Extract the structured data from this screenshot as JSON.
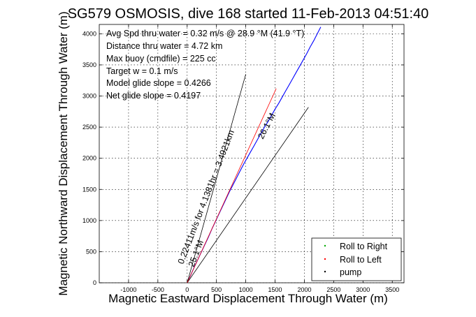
{
  "chart_data": {
    "type": "line",
    "title": "SG579 OSMOSIS, dive 168 started 11-Feb-2013 04:51:40",
    "xlabel": "Magnetic Eastward Displacement Through Water (m)",
    "ylabel": "Magnetic Northward Displacement Through Water (m)",
    "xlim": [
      -1500,
      3700
    ],
    "ylim": [
      0,
      4150
    ],
    "xticks": [
      -1000,
      -500,
      0,
      500,
      1000,
      1500,
      2000,
      2500,
      3000,
      3500
    ],
    "yticks": [
      0,
      500,
      1000,
      1500,
      2000,
      2500,
      3000,
      3500,
      4000
    ],
    "grid": true,
    "annotations": [
      "Avg Spd thru water = 0.32 m/s @ 28.9 °M (41.9 °T)",
      "Distance thru water = 4.72 km",
      "Max buoy (cmdfile) = 225 cc",
      "Target w = 0.1 m/s",
      "Model glide slope = 0.4266",
      "Net glide slope = 0.4197"
    ],
    "rotated_labels": [
      "0.22411m/s for 4.1381hr = 3.4921km",
      "26.1°M",
      "25.1°M"
    ],
    "series": [
      {
        "name": "track",
        "color": "#0000ff",
        "x": [
          0,
          60,
          120,
          180,
          240,
          300,
          360,
          420,
          480,
          540,
          600,
          660,
          720,
          780,
          840,
          900,
          960,
          1020,
          1080,
          1140,
          1200,
          1260,
          1320,
          1380,
          1440,
          1500,
          1560,
          1620,
          1680,
          1740,
          1800,
          1860,
          1920,
          1980,
          2040,
          2100,
          2160,
          2220,
          2280
        ],
        "y": [
          0,
          120,
          250,
          370,
          490,
          610,
          730,
          860,
          980,
          1100,
          1220,
          1340,
          1460,
          1570,
          1680,
          1790,
          1900,
          2000,
          2100,
          2200,
          2300,
          2400,
          2500,
          2590,
          2690,
          2790,
          2880,
          2980,
          3080,
          3180,
          3280,
          3380,
          3480,
          3580,
          3680,
          3790,
          3890,
          4000,
          4110
        ]
      },
      {
        "name": "wind-line-1",
        "color": "#000000",
        "x": [
          0,
          1000
        ],
        "y": [
          0,
          3350
        ]
      },
      {
        "name": "wind-line-2",
        "color": "#000000",
        "x": [
          0,
          2070
        ],
        "y": [
          0,
          2820
        ]
      },
      {
        "name": "model-course",
        "color": "#ff0000",
        "x": [
          0,
          1520
        ],
        "y": [
          0,
          3120
        ]
      }
    ],
    "legend": {
      "position": "bottom-right",
      "entries": [
        {
          "label": "Roll to Right",
          "color": "#00aa00"
        },
        {
          "label": "Roll to Left",
          "color": "#ff0000"
        },
        {
          "label": "pump",
          "color": "#000000"
        }
      ]
    }
  }
}
